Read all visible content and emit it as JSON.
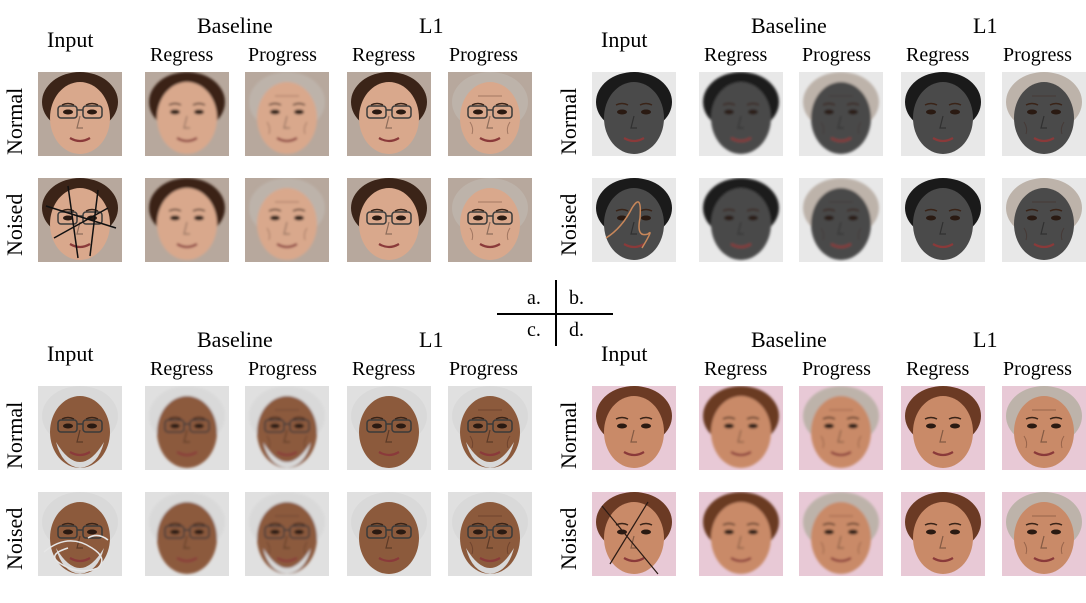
{
  "headers": {
    "input": "Input",
    "baseline": "Baseline",
    "l1": "L1",
    "regress": "Regress",
    "progress": "Progress"
  },
  "rows": {
    "normal": "Normal",
    "noised": "Noised"
  },
  "quadrant_labels": [
    "a.",
    "b.",
    "c.",
    "d."
  ],
  "panels": [
    {
      "id": "a",
      "skin": "#d9a88c",
      "hair": "#3b2418",
      "bg": "#b7a89d",
      "glasses": true,
      "beard": false,
      "noise": "#111111"
    },
    {
      "id": "b",
      "skin": "#4a4a4a",
      "hair": "#1a1a1a",
      "bg": "#e8e8e8",
      "glasses": false,
      "beard": false,
      "noise": "#c8875a"
    },
    {
      "id": "c",
      "skin": "#8c5a3c",
      "hair": "#d9d9d9",
      "bg": "#e0e0e0",
      "glasses": true,
      "beard": true,
      "noise": "#e6e6e6"
    },
    {
      "id": "d",
      "skin": "#c98a68",
      "hair": "#6b3a24",
      "bg": "#e8c9d6",
      "glasses": false,
      "beard": false,
      "noise": "#2a1a14"
    }
  ]
}
